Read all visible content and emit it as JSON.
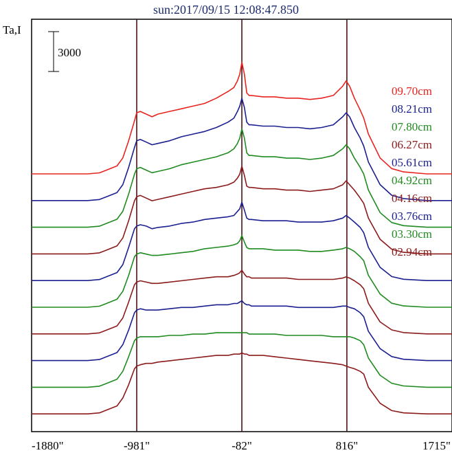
{
  "chart_data": {
    "type": "line",
    "title": "sun:2017/09/15 12:08:47.850",
    "ylabel": "Ta,I",
    "xlabel": "",
    "scale_bar": "3000",
    "x_ticks": [
      "-1880\"",
      "-981\"",
      "-82\"",
      "816\"",
      "1715\""
    ],
    "xlim": [
      -1880,
      1715
    ],
    "vlines": [
      -981,
      -82,
      816
    ],
    "x": [
      -1880,
      -1600,
      -1400,
      -1300,
      -1250,
      -1150,
      -1100,
      -1050,
      -1000,
      -981,
      -950,
      -900,
      -850,
      -800,
      -700,
      -600,
      -500,
      -400,
      -300,
      -200,
      -150,
      -120,
      -100,
      -82,
      -60,
      -40,
      -20,
      0,
      100,
      200,
      300,
      400,
      500,
      600,
      700,
      780,
      810,
      840,
      880,
      930,
      960,
      1000,
      1100,
      1200,
      1300,
      1500,
      1715
    ],
    "series": [
      {
        "name": "09.70cm",
        "color": "#e8231e",
        "values": [
          0,
          0,
          0,
          80,
          250,
          600,
          1200,
          2500,
          4000,
          4600,
          4700,
          4500,
          4300,
          4500,
          4700,
          4900,
          5100,
          5300,
          5700,
          6200,
          6500,
          7000,
          7500,
          8400,
          7500,
          6100,
          5900,
          5900,
          5800,
          5800,
          5700,
          5700,
          5600,
          5700,
          5900,
          6600,
          7000,
          6600,
          5700,
          4800,
          4200,
          3000,
          1200,
          400,
          150,
          0,
          0
        ]
      },
      {
        "name": "08.21cm",
        "color": "#1a1f8f",
        "values": [
          0,
          0,
          0,
          80,
          250,
          600,
          1200,
          2500,
          4000,
          4500,
          4600,
          4400,
          4200,
          4300,
          4500,
          4800,
          5000,
          5200,
          5500,
          5900,
          6200,
          6700,
          7100,
          7700,
          7000,
          5900,
          5700,
          5700,
          5600,
          5600,
          5500,
          5500,
          5400,
          5500,
          5700,
          6300,
          6600,
          6300,
          5500,
          4700,
          4100,
          2900,
          1200,
          400,
          150,
          0,
          0
        ]
      },
      {
        "name": "07.80cm",
        "color": "#1f8a1f",
        "values": [
          0,
          0,
          0,
          80,
          250,
          600,
          1200,
          2500,
          4000,
          4400,
          4500,
          4300,
          4100,
          4200,
          4400,
          4700,
          4900,
          5100,
          5300,
          5600,
          5900,
          6300,
          6700,
          7400,
          6700,
          5600,
          5400,
          5400,
          5300,
          5300,
          5200,
          5200,
          5100,
          5200,
          5400,
          5900,
          6200,
          5900,
          5200,
          4500,
          4000,
          2800,
          1100,
          350,
          120,
          0,
          0
        ]
      },
      {
        "name": "06.27cm",
        "color": "#8b1a1a",
        "values": [
          0,
          0,
          0,
          80,
          250,
          600,
          1200,
          2500,
          4000,
          4300,
          4400,
          4200,
          4000,
          4100,
          4300,
          4500,
          4700,
          4900,
          5000,
          5200,
          5400,
          5700,
          6000,
          6600,
          5900,
          5100,
          5000,
          5000,
          4900,
          4900,
          4800,
          4800,
          4700,
          4800,
          4900,
          5200,
          5500,
          5200,
          4800,
          4200,
          3800,
          2700,
          1100,
          350,
          120,
          0,
          0
        ]
      },
      {
        "name": "05.61cm",
        "color": "#1a1f8f",
        "values": [
          0,
          0,
          0,
          80,
          250,
          600,
          1200,
          2500,
          3900,
          4100,
          4200,
          4100,
          3900,
          4000,
          4100,
          4300,
          4400,
          4600,
          4700,
          4800,
          4900,
          5200,
          5400,
          5900,
          5300,
          4700,
          4600,
          4600,
          4500,
          4500,
          4500,
          4400,
          4400,
          4400,
          4500,
          4700,
          4900,
          4700,
          4400,
          4000,
          3600,
          2500,
          1000,
          300,
          100,
          0,
          0
        ]
      },
      {
        "name": "04.92cm",
        "color": "#1f8a1f",
        "values": [
          0,
          0,
          0,
          80,
          250,
          600,
          1200,
          2400,
          3800,
          4000,
          4100,
          4000,
          3900,
          3900,
          4000,
          4100,
          4200,
          4400,
          4500,
          4600,
          4700,
          4800,
          5000,
          5400,
          4900,
          4500,
          4400,
          4400,
          4400,
          4300,
          4300,
          4300,
          4200,
          4200,
          4300,
          4400,
          4500,
          4400,
          4200,
          3800,
          3500,
          2400,
          1000,
          300,
          100,
          0,
          0
        ]
      },
      {
        "name": "04.16cm",
        "color": "#8b1a1a",
        "values": [
          0,
          0,
          0,
          80,
          250,
          600,
          1200,
          2400,
          3700,
          3900,
          4000,
          3900,
          3800,
          3800,
          3900,
          4000,
          4100,
          4200,
          4300,
          4300,
          4400,
          4500,
          4600,
          4800,
          4500,
          4300,
          4300,
          4200,
          4200,
          4200,
          4200,
          4100,
          4100,
          4100,
          4100,
          4200,
          4300,
          4200,
          4000,
          3700,
          3400,
          2300,
          900,
          300,
          100,
          0,
          0
        ]
      },
      {
        "name": "03.76cm",
        "color": "#1a1f8f",
        "values": [
          0,
          0,
          0,
          80,
          250,
          600,
          1200,
          2300,
          3600,
          3800,
          3900,
          3800,
          3800,
          3800,
          3900,
          4000,
          4000,
          4100,
          4200,
          4200,
          4300,
          4300,
          4400,
          4500,
          4300,
          4200,
          4200,
          4100,
          4100,
          4100,
          4100,
          4000,
          4000,
          4000,
          4000,
          4100,
          4100,
          4000,
          3900,
          3600,
          3300,
          2200,
          900,
          300,
          100,
          0,
          0
        ]
      },
      {
        "name": "03.30cm",
        "color": "#1f8a1f",
        "values": [
          0,
          0,
          0,
          80,
          250,
          600,
          1200,
          2300,
          3500,
          3700,
          3800,
          3800,
          3800,
          3800,
          3900,
          3900,
          4000,
          4000,
          4100,
          4100,
          4100,
          4100,
          4100,
          4100,
          4100,
          4100,
          4000,
          4000,
          4000,
          4000,
          3900,
          3900,
          3900,
          3900,
          3800,
          3800,
          3800,
          3800,
          3700,
          3500,
          3200,
          2200,
          900,
          300,
          100,
          0,
          0
        ]
      },
      {
        "name": "02.94cm",
        "color": "#8b1a1a",
        "values": [
          0,
          0,
          0,
          80,
          250,
          600,
          1200,
          2200,
          3400,
          3600,
          3700,
          3800,
          3800,
          3900,
          4000,
          4100,
          4200,
          4300,
          4400,
          4400,
          4500,
          4500,
          4500,
          4600,
          4500,
          4500,
          4400,
          4400,
          4400,
          4300,
          4200,
          4100,
          4000,
          3900,
          3800,
          3700,
          3600,
          3500,
          3400,
          3200,
          3000,
          2000,
          800,
          250,
          80,
          0,
          0
        ]
      }
    ]
  }
}
